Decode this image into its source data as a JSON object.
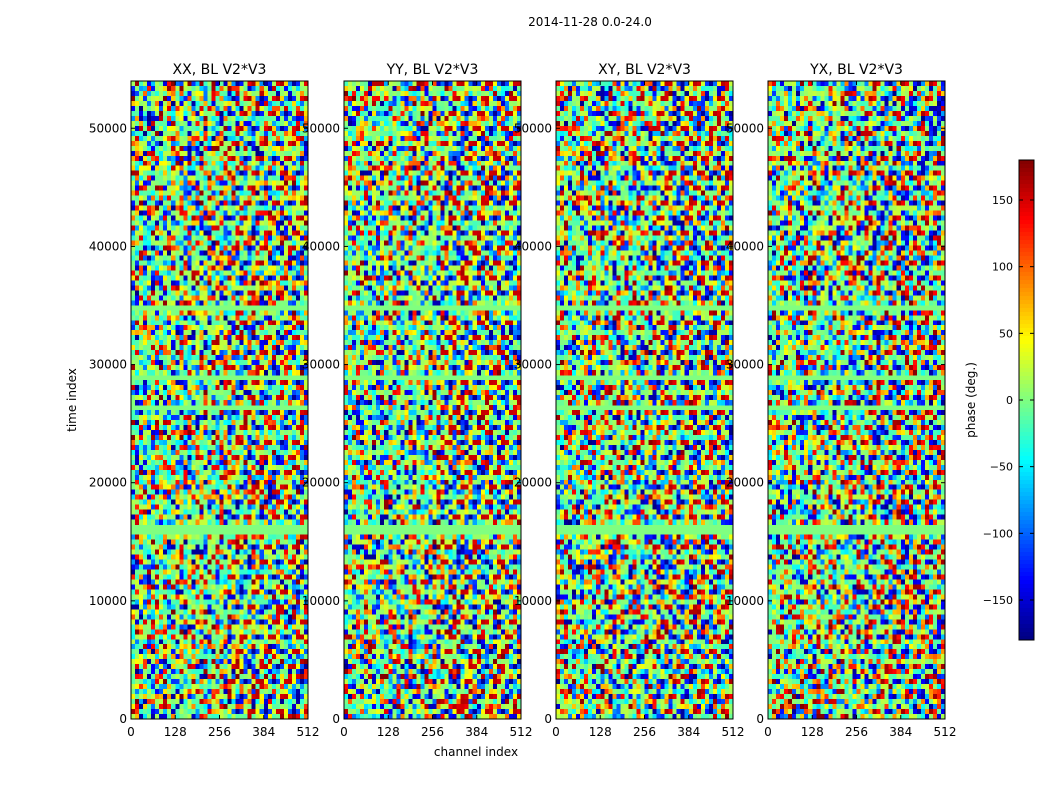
{
  "figure": {
    "suptitle": "2014-11-28 0.0-24.0"
  },
  "chart_data": {
    "type": "heatmap",
    "xlabel": "channel index",
    "ylabel": "time index",
    "xlim": [
      0,
      512
    ],
    "ylim": [
      0,
      54000
    ],
    "xticks": [
      0,
      128,
      256,
      384,
      512
    ],
    "yticks": [
      0,
      10000,
      20000,
      30000,
      40000,
      50000
    ],
    "panels": [
      {
        "title": "XX, BL V2*V3",
        "pol": "XX"
      },
      {
        "title": "YY, BL V2*V3",
        "pol": "YY"
      },
      {
        "title": "XY, BL V2*V3",
        "pol": "XY"
      },
      {
        "title": "YX, BL V2*V3",
        "pol": "YX"
      }
    ],
    "flat_bands": [
      {
        "from": 37700,
        "to": 38600,
        "panels": [
          "XX",
          "YY",
          "XY",
          "YX"
        ]
      },
      {
        "from": 27400,
        "to": 27900,
        "panels": [
          "XX",
          "XY",
          "YX"
        ]
      },
      {
        "from": 25000,
        "to": 25300,
        "panels": [
          "XX",
          "YY",
          "XY",
          "YX"
        ]
      },
      {
        "from": 18900,
        "to": 19200,
        "panels": [
          "XX",
          "YY",
          "XY",
          "YX"
        ]
      }
    ],
    "colorbar": {
      "label": "phase (deg.)",
      "range": [
        -180,
        180
      ],
      "ticks": [
        -150,
        -100,
        -50,
        0,
        50,
        100,
        150
      ],
      "colormap": "jet"
    }
  }
}
